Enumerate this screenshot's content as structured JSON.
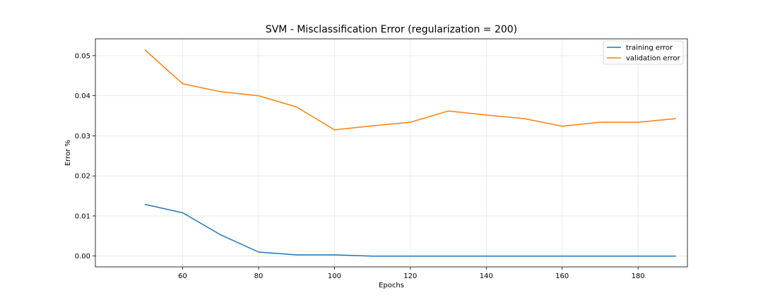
{
  "chart_data": {
    "type": "line",
    "title": "SVM - Misclassification Error (regularization = 200)",
    "xlabel": "Epochs",
    "ylabel": "Error %",
    "xlim": [
      37,
      193
    ],
    "ylim": [
      -0.0027,
      0.0542
    ],
    "xticks": [
      60,
      80,
      100,
      120,
      140,
      160,
      180
    ],
    "yticks": [
      0.0,
      0.01,
      0.02,
      0.03,
      0.04,
      0.05
    ],
    "ytick_labels": [
      "0.00",
      "0.01",
      "0.02",
      "0.03",
      "0.04",
      "0.05"
    ],
    "grid": true,
    "legend_position": "top-right",
    "x": [
      50,
      60,
      70,
      80,
      90,
      100,
      110,
      120,
      130,
      140,
      150,
      160,
      170,
      180,
      190
    ],
    "series": [
      {
        "name": "training error",
        "color": "#1f77b4",
        "values": [
          0.0129,
          0.0108,
          0.0053,
          0.001,
          0.0003,
          0.0003,
          0.0,
          0.0,
          0.0,
          0.0,
          0.0,
          0.0,
          0.0,
          0.0,
          0.0
        ]
      },
      {
        "name": "validation error",
        "color": "#ff7f0e",
        "values": [
          0.0515,
          0.043,
          0.041,
          0.04,
          0.0372,
          0.0315,
          0.0325,
          0.0334,
          0.0362,
          0.0352,
          0.0343,
          0.0324,
          0.0334,
          0.0334,
          0.0343
        ]
      }
    ]
  }
}
